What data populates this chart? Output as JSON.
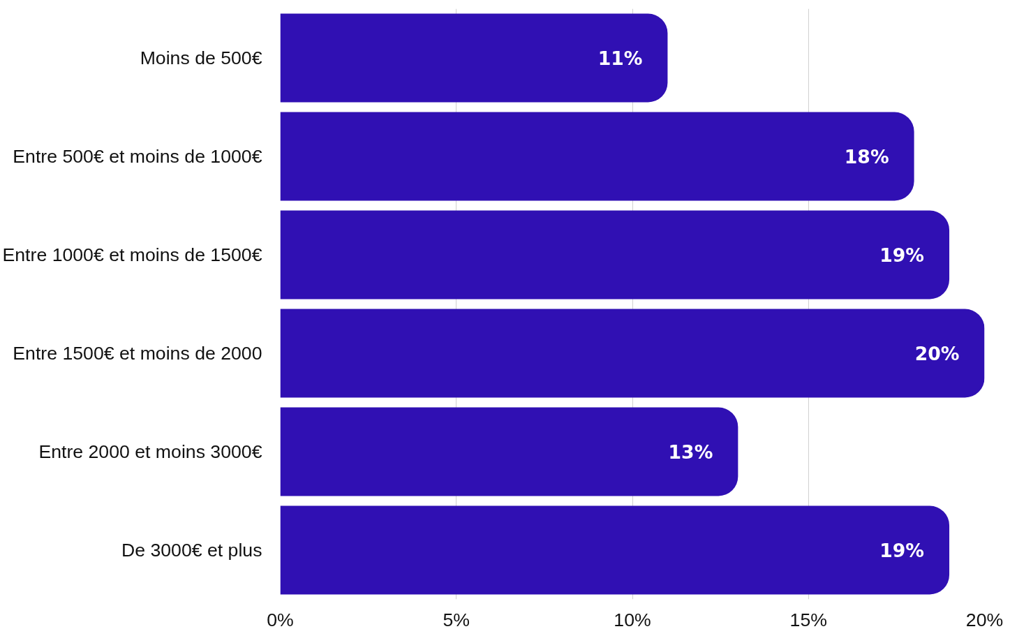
{
  "chart_data": {
    "type": "bar",
    "orientation": "horizontal",
    "categories": [
      "Moins de 500€",
      "Entre 500€ et moins de 1000€",
      "Entre 1000€ et moins de 1500€",
      "Entre 1500€ et moins de 2000",
      "Entre 2000 et moins 3000€",
      "De 3000€ et plus"
    ],
    "values": [
      11,
      18,
      19,
      20,
      13,
      19
    ],
    "value_labels": [
      "11%",
      "18%",
      "19%",
      "20%",
      "13%",
      "19%"
    ],
    "color": "#3010b3",
    "xlim": [
      0,
      20
    ],
    "xticks": [
      {
        "value": 0,
        "label": "0%"
      },
      {
        "value": 5,
        "label": "5%"
      },
      {
        "value": 10,
        "label": "10%"
      },
      {
        "value": 15,
        "label": "15%"
      },
      {
        "value": 20,
        "label": "20%"
      }
    ],
    "grid": "x"
  }
}
